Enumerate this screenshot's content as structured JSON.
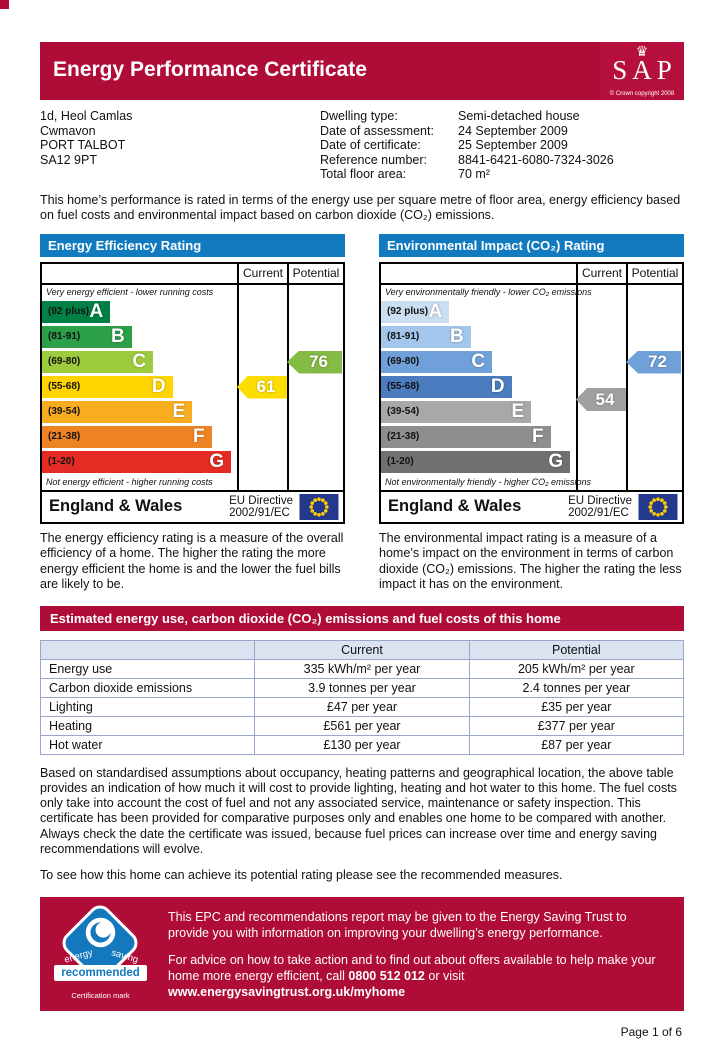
{
  "header": {
    "title": "Energy Performance Certificate",
    "sap_letters": "SAP",
    "sap_copyright": "© Crown copyright 2008"
  },
  "property": {
    "address_lines": [
      "1d, Heol Camlas",
      "Cwmavon",
      "PORT TALBOT",
      "SA12 9PT"
    ],
    "details": [
      {
        "label": "Dwelling type:",
        "value": "Semi-detached house"
      },
      {
        "label": "Date of assessment:",
        "value": "24 September 2009"
      },
      {
        "label": "Date of certificate:",
        "value": "25 September 2009"
      },
      {
        "label": "Reference number:",
        "value": "8841-6421-6080-7324-3026"
      },
      {
        "label": "Total floor area:",
        "value": "70 m²"
      }
    ]
  },
  "intro": "This home’s performance is rated in terms of the energy use per square metre of floor area, energy efficiency based on fuel costs and environmental impact based on carbon dioxide (CO₂) emissions.",
  "charts": [
    {
      "title": "Energy Efficiency Rating",
      "columns": [
        "Current",
        "Potential"
      ],
      "top_caption": "Very energy efficient - lower running costs",
      "bottom_caption": "Not energy efficient - higher running costs",
      "bands": [
        {
          "range": "(92 plus)",
          "letter": "A",
          "color": "#008044",
          "width": 35
        },
        {
          "range": "(81-91)",
          "letter": "B",
          "color": "#2ca048",
          "width": 46
        },
        {
          "range": "(69-80)",
          "letter": "C",
          "color": "#9ecb3d",
          "width": 57
        },
        {
          "range": "(55-68)",
          "letter": "D",
          "color": "#ffd400",
          "width": 67
        },
        {
          "range": "(39-54)",
          "letter": "E",
          "color": "#f8ad21",
          "width": 77
        },
        {
          "range": "(21-38)",
          "letter": "F",
          "color": "#ee8323",
          "width": 87
        },
        {
          "range": "(1-20)",
          "letter": "G",
          "color": "#e42b24",
          "width": 97
        }
      ],
      "current": {
        "value": "61",
        "color": "#fcdd00",
        "row": 3
      },
      "potential": {
        "value": "76",
        "color": "#83bb45",
        "row": 2
      },
      "footer": {
        "region": "England & Wales",
        "directive": [
          "EU Directive",
          "2002/91/EC"
        ]
      },
      "description": "The energy efficiency rating is a measure of the overall efficiency of a home. The higher the rating the more energy efficient the home is and the lower the fuel bills are likely to be."
    },
    {
      "title": "Environmental Impact (CO₂) Rating",
      "columns": [
        "Current",
        "Potential"
      ],
      "top_caption": "Very environmentally friendly - lower CO₂ emissions",
      "bottom_caption": "Not environmentally friendly - higher CO₂ emissions",
      "bands": [
        {
          "range": "(92 plus)",
          "letter": "A",
          "color": "#cadef2",
          "width": 35
        },
        {
          "range": "(81-91)",
          "letter": "B",
          "color": "#a2c6ec",
          "width": 46
        },
        {
          "range": "(69-80)",
          "letter": "C",
          "color": "#6fa0d9",
          "width": 57
        },
        {
          "range": "(55-68)",
          "letter": "D",
          "color": "#4a7cbf",
          "width": 67
        },
        {
          "range": "(39-54)",
          "letter": "E",
          "color": "#a8a8a8",
          "width": 77
        },
        {
          "range": "(21-38)",
          "letter": "F",
          "color": "#8e8e8e",
          "width": 87
        },
        {
          "range": "(1-20)",
          "letter": "G",
          "color": "#707070",
          "width": 97
        }
      ],
      "current": {
        "value": "54",
        "color": "#a0a0a0",
        "row": 3.5
      },
      "potential": {
        "value": "72",
        "color": "#6fa0d9",
        "row": 2
      },
      "footer": {
        "region": "England & Wales",
        "directive": [
          "EU Directive",
          "2002/91/EC"
        ]
      },
      "description": "The environmental impact rating is a measure of a home’s impact on the environment in terms of carbon dioxide (CO₂) emissions. The higher the rating the less impact it has on the environment."
    }
  ],
  "cost_section": {
    "title": "Estimated energy use, carbon dioxide (CO₂) emissions and fuel costs of this home",
    "table": {
      "headers": [
        "",
        "Current",
        "Potential"
      ],
      "rows": [
        [
          "Energy use",
          "335 kWh/m² per year",
          "205 kWh/m² per year"
        ],
        [
          "Carbon dioxide emissions",
          "3.9 tonnes per year",
          "2.4 tonnes per year"
        ],
        [
          "Lighting",
          "£47 per year",
          "£35 per year"
        ],
        [
          "Heating",
          "£561 per year",
          "£377 per year"
        ],
        [
          "Hot water",
          "£130 per year",
          "£87 per year"
        ]
      ]
    }
  },
  "paragraphs": [
    "Based on standardised assumptions about occupancy, heating patterns and geographical location, the above table provides an indication of how much it will cost to provide lighting, heating and hot water to this home. The fuel costs only take into account the cost of fuel and not any associated service, maintenance or safety inspection. This certificate has been provided for comparative purposes only and enables one home to be compared with another. Always check the date the certificate was issued, because fuel prices can increase over time and energy saving recommendations will evolve.",
    "To see how this home can achieve its potential rating please see the recommended measures."
  ],
  "footer_box": {
    "logo": {
      "curve_text_left": "energy",
      "curve_text_right": "saving",
      "band": "recommended",
      "caption": "Certification mark"
    },
    "paragraph1": "This EPC and recommendations report may be given to the Energy Saving Trust to provide you with information on improving your dwelling’s energy performance.",
    "paragraph2": [
      {
        "text": "For advice on how to take action and to find out about offers available to help make your home more energy efficient, call ",
        "bold": false
      },
      {
        "text": "0800 512 012",
        "bold": true
      },
      {
        "text": " or visit ",
        "bold": false
      },
      {
        "text": "www.energysavingtrust.org.uk/myhome",
        "bold": true
      }
    ]
  },
  "page_number": "Page 1 of 6",
  "colors": {
    "crimson": "#b00c38",
    "chart_title_blue": "#127bc0",
    "table_border": "#9ba6ce",
    "table_header_bg": "#dbe2f0",
    "eu_flag_blue": "#24388c",
    "eu_star_yellow": "#ffcc00",
    "est_logo_blue": "#1478be"
  }
}
